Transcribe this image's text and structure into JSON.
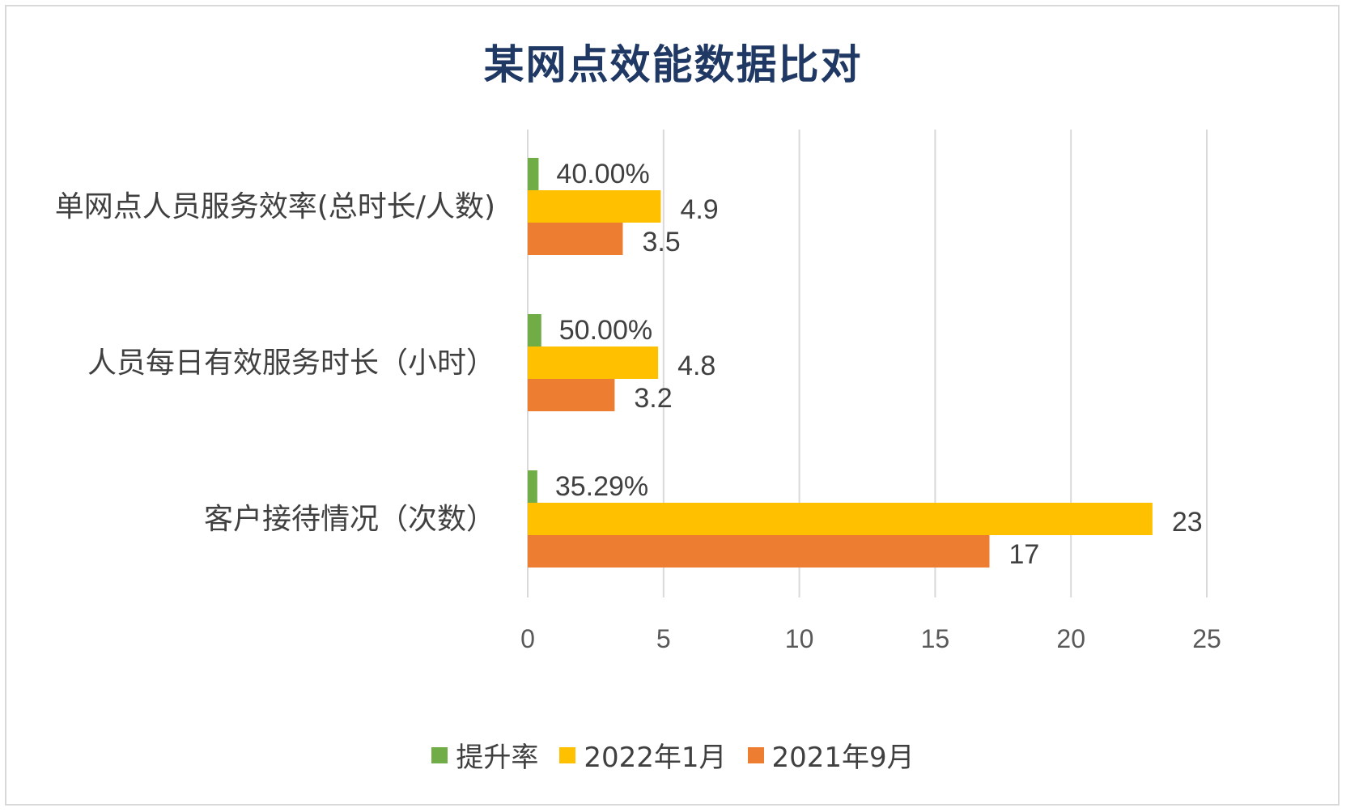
{
  "chart_data": {
    "type": "bar",
    "orientation": "horizontal",
    "title": "某网点效能数据比对",
    "categories": [
      "单网点人员服务效率(总时长/人数)",
      "人员每日有效服务时长（小时）",
      "客户接待情况（次数）"
    ],
    "series": [
      {
        "name": "提升率",
        "values": [
          0.4,
          0.5,
          0.3529
        ],
        "labels": [
          "40.00%",
          "50.00%",
          "35.29%"
        ],
        "color": "#70ad47"
      },
      {
        "name": "2022年1月",
        "values": [
          4.9,
          4.8,
          23
        ],
        "labels": [
          "4.9",
          "4.8",
          "23"
        ],
        "color": "#ffc000"
      },
      {
        "name": "2021年9月",
        "values": [
          3.5,
          3.2,
          17
        ],
        "labels": [
          "3.5",
          "3.2",
          "17"
        ],
        "color": "#ed7d31"
      }
    ],
    "xlim": [
      0,
      25
    ],
    "xticks": [
      "0",
      "5",
      "10",
      "15",
      "20",
      "25"
    ],
    "xtick_values": [
      0,
      5,
      10,
      15,
      20,
      25
    ],
    "grid": true,
    "legend_position": "bottom",
    "gridline_color": "#d9d9d9",
    "title_color": "#1f3864"
  }
}
